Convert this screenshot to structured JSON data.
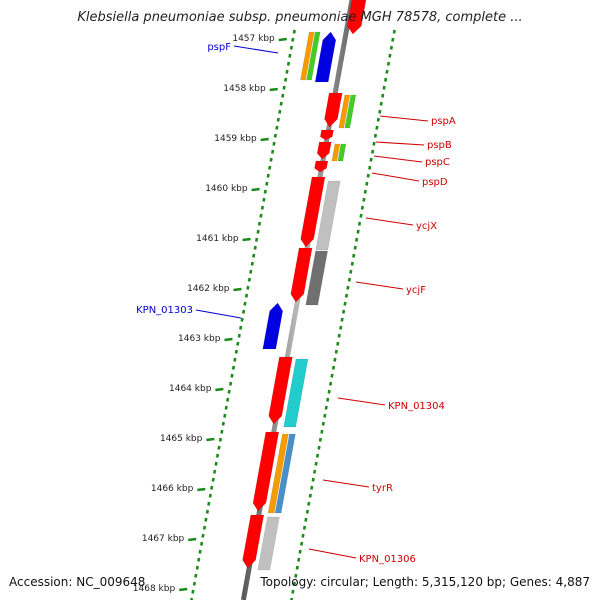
{
  "title": "Klebsiella pneumoniae subsp. pneumoniae MGH 78578, complete ...",
  "accession_text": "Accession: NC_009648",
  "summary_text": "Topology: circular; Length: 5,315,120 bp; Genes: 4,887",
  "colors": {
    "backbone": "#888888",
    "track_dots": "#1a8a1a",
    "forward_gene": "#ff0000",
    "reverse_gene": "#0000e0",
    "forward_label": "#cc0000",
    "reverse_label": "#0000cc",
    "orange": "#f59b00",
    "green": "#44cc22",
    "cyan": "#22cccc",
    "steel_blue": "#4a90c8",
    "light_gray": "#c0c0c0",
    "dark_gray": "#707070"
  },
  "kbp_ticks": [
    {
      "label": "1457 kbp"
    },
    {
      "label": "1458 kbp"
    },
    {
      "label": "1459 kbp"
    },
    {
      "label": "1460 kbp"
    },
    {
      "label": "1461 kbp"
    },
    {
      "label": "1462 kbp"
    },
    {
      "label": "1463 kbp"
    },
    {
      "label": "1464 kbp"
    },
    {
      "label": "1465 kbp"
    },
    {
      "label": "1466 kbp"
    },
    {
      "label": "1467 kbp"
    },
    {
      "label": "1468 kbp"
    }
  ],
  "genes": {
    "reverse": [
      {
        "label": "pspF"
      },
      {
        "label": "KPN_01303"
      }
    ],
    "forward": [
      {
        "label": "pspA"
      },
      {
        "label": "pspB"
      },
      {
        "label": "pspC"
      },
      {
        "label": "pspD"
      },
      {
        "label": "ycjX"
      },
      {
        "label": "ycjF"
      },
      {
        "label": "KPN_01304"
      },
      {
        "label": "tyrR"
      },
      {
        "label": "KPN_01306"
      }
    ]
  }
}
